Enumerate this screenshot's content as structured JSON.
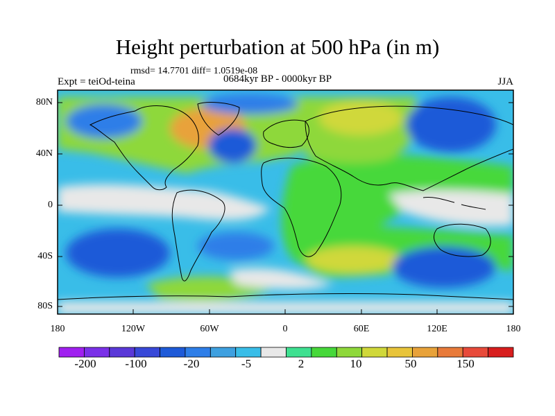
{
  "title": "Height perturbation at 500 hPa (in m)",
  "stats": "rmsd= 14.7701 diff= 1.0519e-08",
  "experiment": "Expt = teiOd-teina",
  "period": "0684kyr BP - 0000kyr BP",
  "season": "JJA",
  "lat_labels": [
    "80N",
    "40N",
    "0",
    "40S",
    "80S"
  ],
  "lon_labels": [
    "180",
    "120W",
    "60W",
    "0",
    "60E",
    "120E",
    "180"
  ],
  "colorbar": {
    "colors": [
      "#a020f0",
      "#7a30e8",
      "#5a38d8",
      "#3848d8",
      "#1e5ad8",
      "#2e7ee8",
      "#3ea0e0",
      "#39bde8",
      "#e8e8e8",
      "#3ee090",
      "#46d83a",
      "#8ed83a",
      "#d0d83a",
      "#e8c43a",
      "#e8a23a",
      "#e87a3a",
      "#e84a3a",
      "#d81e1e"
    ],
    "labels": [
      "-200",
      "-100",
      "-20",
      "-5",
      "2",
      "10",
      "50",
      "150"
    ]
  }
}
